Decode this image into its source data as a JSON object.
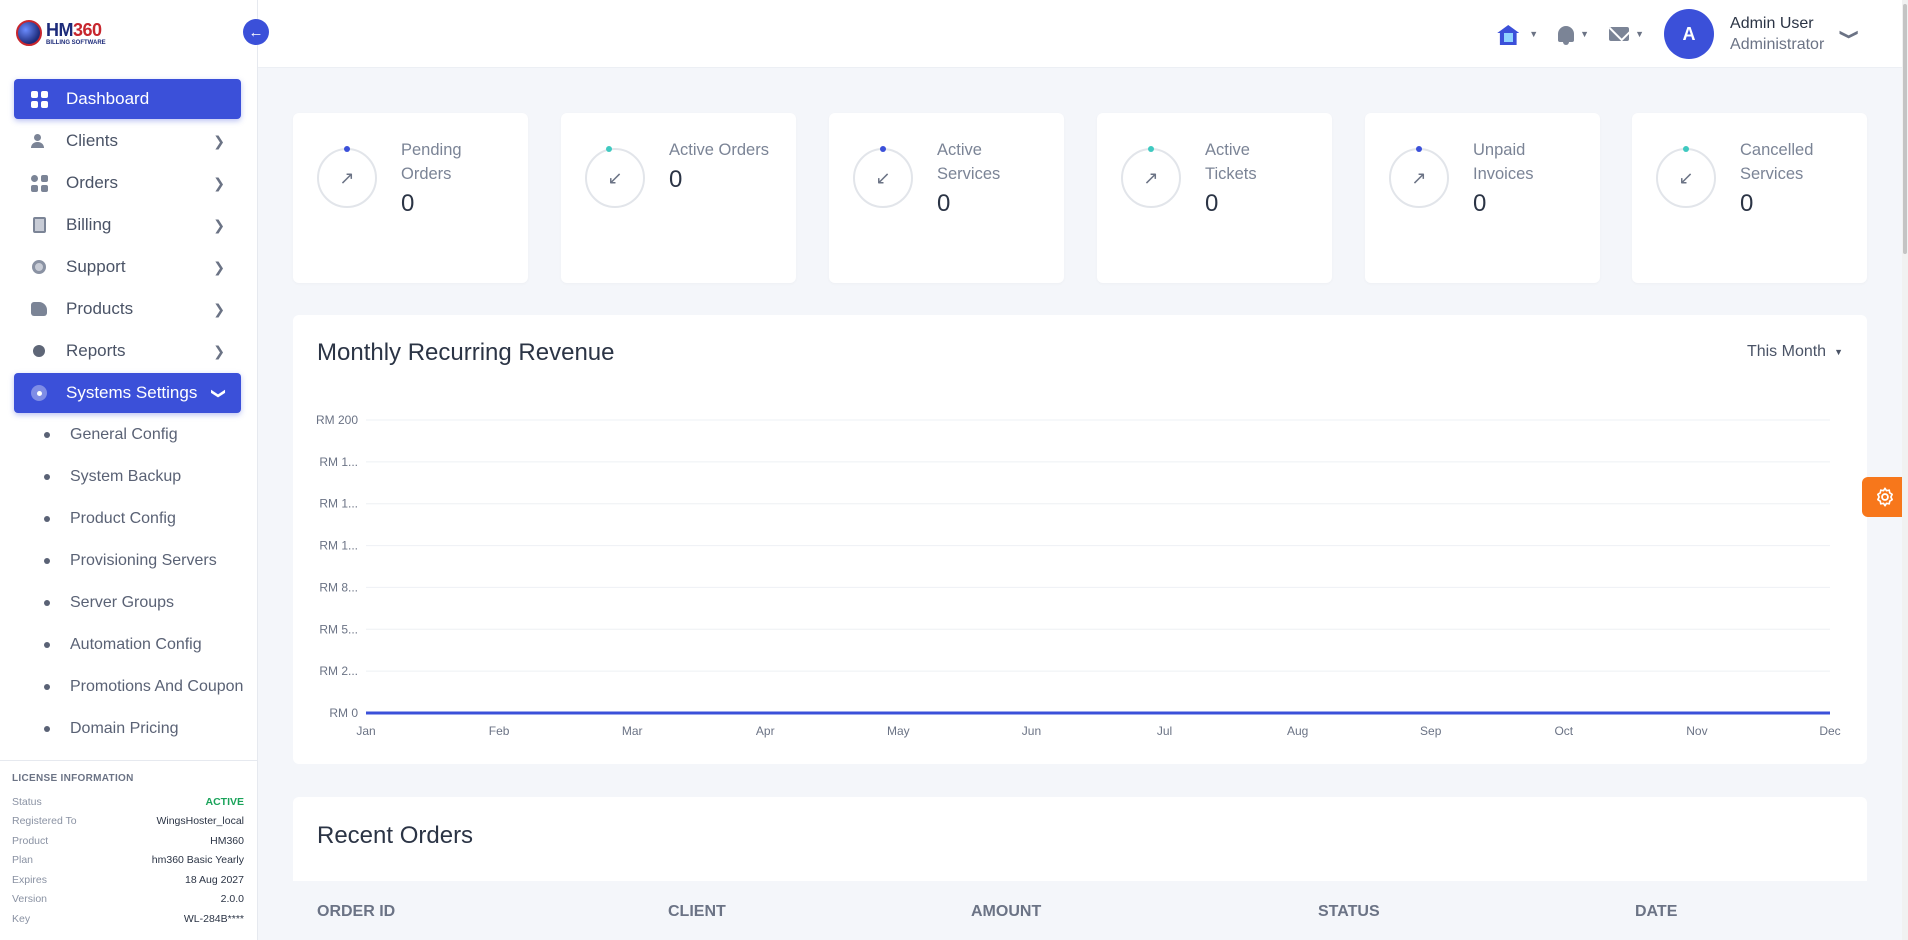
{
  "brand": {
    "name_a": "HM",
    "name_b": "360",
    "tagline": "BILLING SOFTWARE"
  },
  "sidebar": {
    "items": [
      {
        "label": "Dashboard",
        "icon": "dashboard-grid-icon",
        "active": true
      },
      {
        "label": "Clients",
        "icon": "clients-icon"
      },
      {
        "label": "Orders",
        "icon": "orders-grid-icon"
      },
      {
        "label": "Billing",
        "icon": "billing-icon"
      },
      {
        "label": "Support",
        "icon": "support-icon"
      },
      {
        "label": "Products",
        "icon": "products-icon"
      },
      {
        "label": "Reports",
        "icon": "reports-icon"
      },
      {
        "label": "Systems Settings",
        "icon": "settings-icon",
        "active": true,
        "expanded": true
      }
    ],
    "submenu": [
      "General Config",
      "System Backup",
      "Product Config",
      "Provisioning Servers",
      "Server Groups",
      "Automation Config",
      "Promotions And Coupons",
      "Domain Pricing"
    ]
  },
  "license": {
    "title": "LICENSE INFORMATION",
    "rows": [
      {
        "key": "Status",
        "value": "ACTIVE"
      },
      {
        "key": "Registered To",
        "value": "WingsHoster_local"
      },
      {
        "key": "Product",
        "value": "HM360"
      },
      {
        "key": "Plan",
        "value": "hm360 Basic Yearly"
      },
      {
        "key": "Expires",
        "value": "18 Aug 2027"
      },
      {
        "key": "Version",
        "value": "2.0.0"
      },
      {
        "key": "Key",
        "value": "WL-284B****"
      }
    ]
  },
  "topbar": {
    "icons": [
      "house-icon",
      "bell-icon",
      "mail-icon"
    ],
    "avatar_initial": "A",
    "user_name": "Admin User",
    "user_role": "Administrator"
  },
  "stats": [
    {
      "label": "Pending Orders",
      "value": "0",
      "arrow": "↗",
      "knob": "blue"
    },
    {
      "label": "Active Orders",
      "value": "0",
      "arrow": "↙",
      "knob": "teal"
    },
    {
      "label": "Active Services",
      "value": "0",
      "arrow": "↙",
      "knob": "blue"
    },
    {
      "label": "Active Tickets",
      "value": "0",
      "arrow": "↗",
      "knob": "teal"
    },
    {
      "label": "Unpaid Invoices",
      "value": "0",
      "arrow": "↗",
      "knob": "blue"
    },
    {
      "label": "Cancelled Services",
      "value": "0",
      "arrow": "↙",
      "knob": "teal"
    }
  ],
  "revenue": {
    "title": "Monthly Recurring Revenue",
    "period": "This Month"
  },
  "chart_data": {
    "type": "line",
    "title": "Monthly Recurring Revenue",
    "categories": [
      "Jan",
      "Feb",
      "Mar",
      "Apr",
      "May",
      "Jun",
      "Jul",
      "Aug",
      "Sep",
      "Oct",
      "Nov",
      "Dec"
    ],
    "ytick_labels": [
      "RM 200",
      "RM 1...",
      "RM 1...",
      "RM 1...",
      "RM 8...",
      "RM 5...",
      "RM 2...",
      "RM 0"
    ],
    "series": [
      {
        "values": [
          0,
          0,
          0,
          0,
          0,
          0,
          0,
          0,
          0,
          0,
          0,
          0
        ],
        "color": "#3b50d9"
      }
    ],
    "ylim": [
      0,
      200
    ],
    "grid": true
  },
  "orders": {
    "title": "Recent Orders",
    "columns": [
      "ORDER ID",
      "CLIENT",
      "AMOUNT",
      "STATUS",
      "DATE"
    ]
  },
  "colors": {
    "primary": "#3b50d9",
    "accent_orange": "#f7771b",
    "status_ok": "#1aa35a"
  }
}
